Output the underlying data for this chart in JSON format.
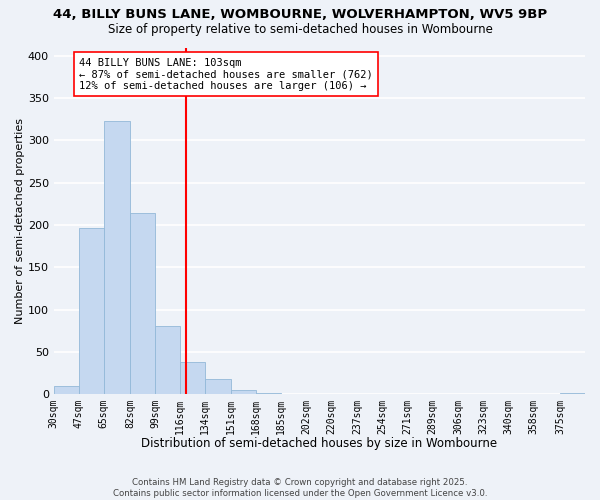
{
  "title": "44, BILLY BUNS LANE, WOMBOURNE, WOLVERHAMPTON, WV5 9BP",
  "subtitle": "Size of property relative to semi-detached houses in Wombourne",
  "xlabel": "Distribution of semi-detached houses by size in Wombourne",
  "ylabel": "Number of semi-detached properties",
  "bar_labels": [
    "30sqm",
    "47sqm",
    "65sqm",
    "82sqm",
    "99sqm",
    "116sqm",
    "134sqm",
    "151sqm",
    "168sqm",
    "185sqm",
    "202sqm",
    "220sqm",
    "237sqm",
    "254sqm",
    "271sqm",
    "289sqm",
    "306sqm",
    "323sqm",
    "340sqm",
    "358sqm",
    "375sqm"
  ],
  "bar_values": [
    10,
    197,
    323,
    214,
    80,
    38,
    18,
    5,
    1,
    0,
    0,
    0,
    0,
    0,
    0,
    0,
    0,
    0,
    0,
    0,
    1
  ],
  "bar_color": "#c5d8f0",
  "bar_edge_color": "#93b8d8",
  "bin_edges": [
    13,
    30,
    47,
    65,
    82,
    99,
    116,
    134,
    151,
    168,
    185,
    202,
    220,
    237,
    254,
    271,
    289,
    306,
    323,
    340,
    358,
    375
  ],
  "vline_color": "red",
  "vline_x": 103,
  "annotation_title": "44 BILLY BUNS LANE: 103sqm",
  "annotation_line1": "← 87% of semi-detached houses are smaller (762)",
  "annotation_line2": "12% of semi-detached houses are larger (106) →",
  "ylim": [
    0,
    410
  ],
  "yticks": [
    0,
    50,
    100,
    150,
    200,
    250,
    300,
    350,
    400
  ],
  "footer1": "Contains HM Land Registry data © Crown copyright and database right 2025.",
  "footer2": "Contains public sector information licensed under the Open Government Licence v3.0.",
  "bg_color": "#eef2f8",
  "grid_color": "#ffffff"
}
